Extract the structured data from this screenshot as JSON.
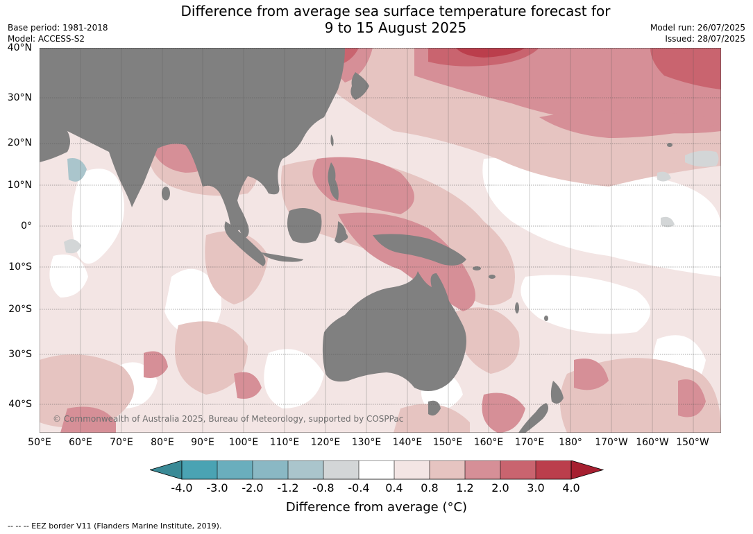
{
  "title_line1": "Difference from average sea surface temperature forecast for",
  "title_line2": "9 to 15 August 2025",
  "meta_left": {
    "base_period": "Base period: 1981-2018",
    "model": "Model: ACCESS-S2"
  },
  "meta_right": {
    "model_run": "Model run: 26/07/2025",
    "issued": "Issued: 28/07/2025"
  },
  "lat_labels": [
    "40°N",
    "30°N",
    "20°N",
    "10°N",
    "0°",
    "10°S",
    "20°S",
    "30°S",
    "40°S"
  ],
  "lon_labels": [
    "50°E",
    "60°E",
    "70°E",
    "80°E",
    "90°E",
    "100°E",
    "110°E",
    "120°E",
    "130°E",
    "140°E",
    "150°E",
    "160°E",
    "170°E",
    "180°",
    "170°W",
    "160°W",
    "150°W"
  ],
  "copyright": "© Commonwealth of Australia 2025, Bureau of Meteorology, supported by COSPPac",
  "colorbar": {
    "tick_labels": [
      "-4.0",
      "-3.0",
      "-2.0",
      "-1.2",
      "-0.8",
      "-0.4",
      "0.4",
      "0.8",
      "1.2",
      "2.0",
      "3.0",
      "4.0"
    ],
    "colors": [
      "#3a8a96",
      "#4aa3b3",
      "#6aaebd",
      "#8ab8c4",
      "#aac5cc",
      "#d3d6d7",
      "#ffffff",
      "#f3e5e4",
      "#e6c4c1",
      "#d68f97",
      "#c9646f",
      "#bb3e4c",
      "#a61f30"
    ],
    "label": "Difference from average ($^\\circ$C)",
    "label_display": "Difference from average (°C)"
  },
  "footnote": "--  --  -- EEZ border V11 (Flanders Marine Institute, 2019)."
}
